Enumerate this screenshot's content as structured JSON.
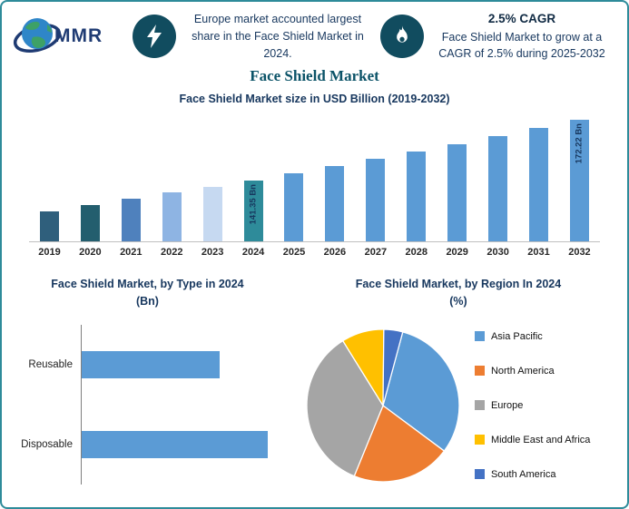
{
  "header": {
    "logo_text": "MMR",
    "left_callout": "Europe market accounted largest share in the Face Shield Market in 2024.",
    "cagr_title": "2.5% CAGR",
    "cagr_text": "Face Shield Market to grow at a CAGR of 2.5% during 2025-2032"
  },
  "title": "Face Shield Market",
  "icons": {
    "left_badge": "lightning-bolt",
    "right_badge": "flame",
    "logo": "globe"
  },
  "colors": {
    "border_teal": "#2E8B9A",
    "navy": "#17375E",
    "badge_teal": "#114C5F",
    "bar_blue": "#5B9BD5",
    "highlight_teal": "#2E8B9A"
  },
  "chart_data": [
    {
      "type": "bar",
      "title": "Face Shield Market size in USD Billion (2019-2032)",
      "categories": [
        "2019",
        "2020",
        "2021",
        "2022",
        "2023",
        "2024",
        "2025",
        "2026",
        "2027",
        "2028",
        "2029",
        "2030",
        "2031",
        "2032"
      ],
      "values": [
        125.5,
        128.6,
        131.8,
        135.1,
        138.2,
        141.35,
        144.88,
        148.51,
        152.22,
        156.02,
        159.92,
        163.92,
        168.02,
        172.22
      ],
      "bar_labels": [
        "",
        "",
        "",
        "",
        "",
        "141.35 Bn",
        "",
        "",
        "",
        "",
        "",
        "",
        "",
        "172.22 Bn"
      ],
      "bar_colors": [
        "#2F5F7C",
        "#235E6E",
        "#4F81BD",
        "#8EB4E3",
        "#C6D9F1",
        "#2E8B9A",
        "#5B9BD5",
        "#5B9BD5",
        "#5B9BD5",
        "#5B9BD5",
        "#5B9BD5",
        "#5B9BD5",
        "#5B9BD5",
        "#5B9BD5"
      ],
      "xlabel": "",
      "ylabel": "USD Billion",
      "ylim": [
        110,
        175
      ],
      "grid": false,
      "legend": false
    },
    {
      "type": "bar",
      "orientation": "horizontal",
      "title": "Face Shield Market, by Type in 2024",
      "subtitle": "(Bn)",
      "categories": [
        "Reusable",
        "Disposable"
      ],
      "values": [
        60.2,
        81.1
      ],
      "xlim": [
        0,
        86
      ],
      "bar_color": "#5B9BD5",
      "grid": false,
      "legend": false
    },
    {
      "type": "pie",
      "title": "Face Shield Market, by Region In 2024",
      "subtitle": "(%)",
      "labels": [
        "Asia Pacific",
        "North America",
        "Europe",
        "Middle East and Africa",
        "South America"
      ],
      "values": [
        31,
        21,
        35,
        9,
        4
      ],
      "colors": [
        "#5B9BD5",
        "#ED7D31",
        "#A5A5A5",
        "#FFC000",
        "#4472C4"
      ],
      "legend_position": "right",
      "start_angle_deg": -75
    }
  ]
}
